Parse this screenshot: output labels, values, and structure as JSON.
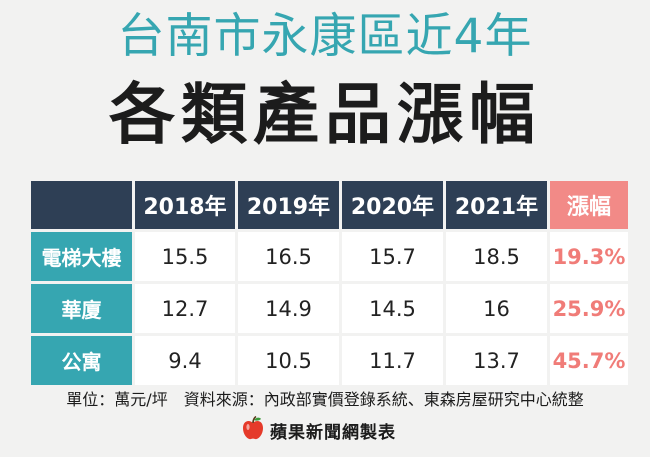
{
  "title": {
    "line1": "台南市永康區近4年",
    "line2": "各類產品漲幅"
  },
  "table": {
    "headers": [
      "",
      "2018年",
      "2019年",
      "2020年",
      "2021年",
      "漲幅"
    ],
    "rows": [
      {
        "label": "電梯大樓",
        "values": [
          "15.5",
          "16.5",
          "15.7",
          "18.5"
        ],
        "change": "19.3%"
      },
      {
        "label": "華廈",
        "values": [
          "12.7",
          "14.9",
          "14.5",
          "16"
        ],
        "change": "25.9%"
      },
      {
        "label": "公寓",
        "values": [
          "9.4",
          "10.5",
          "11.7",
          "13.7"
        ],
        "change": "45.7%"
      }
    ]
  },
  "footer": {
    "note": "單位：萬元/坪　資料來源：內政部實價登錄系統、東森房屋研究中心統整",
    "brand": "蘋果新聞網製表"
  },
  "colors": {
    "teal": "#36a6b1",
    "navy": "#2e3f55",
    "coral": "#f07c78",
    "background": "#f2f2f1"
  },
  "icons": {
    "brand_logo": "apple-icon"
  }
}
